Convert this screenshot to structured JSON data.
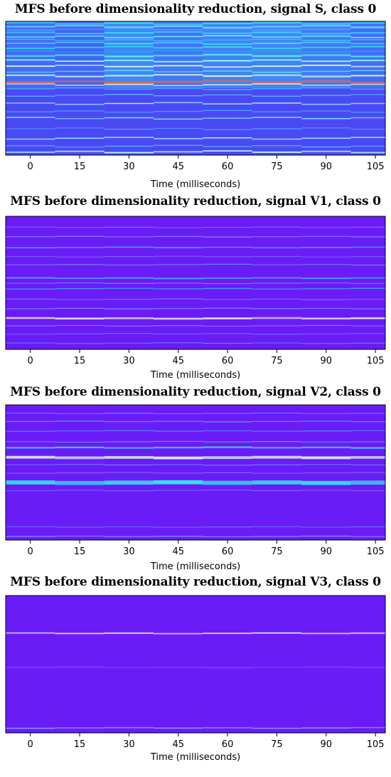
{
  "charts": [
    {
      "title": "MFS before dimensionality reduction, signal S, class 0",
      "xlabel": "Time (milliseconds)",
      "x_ticks": [
        "0",
        "15",
        "30",
        "45",
        "60",
        "75",
        "90",
        "105"
      ]
    },
    {
      "title": "MFS before dimensionality reduction, signal V1, class 0",
      "xlabel": "Time (milliseconds)",
      "x_ticks": [
        "0",
        "15",
        "30",
        "45",
        "60",
        "75",
        "90",
        "105"
      ]
    },
    {
      "title": "MFS before dimensionality reduction, signal V2, class 0",
      "xlabel": "Time (milliseconds)",
      "x_ticks": [
        "0",
        "15",
        "30",
        "45",
        "60",
        "75",
        "90",
        "105"
      ]
    },
    {
      "title": "MFS before dimensionality reduction, signal V3, class 0",
      "xlabel": "Time (milliseconds)",
      "x_ticks": [
        "0",
        "15",
        "30",
        "45",
        "60",
        "75",
        "90",
        "105"
      ]
    }
  ],
  "chart_data": [
    {
      "type": "heatmap",
      "title": "MFS before dimensionality reduction, signal S, class 0",
      "xlabel": "Time (milliseconds)",
      "ylabel": "",
      "x_tick_values": [
        0,
        15,
        30,
        45,
        60,
        75,
        90,
        105
      ],
      "xlim": [
        -7.5,
        108
      ],
      "time_segments_ms": [
        -7.5,
        7.5,
        22.5,
        37.5,
        52.5,
        67.5,
        82.5,
        97.5,
        108
      ],
      "colormap": [
        "#4a3dfc",
        "#3f7bff",
        "#2fc6f4",
        "#6ee6f5",
        "#f2e6d8",
        "#e8a08a",
        "#d9573f"
      ],
      "background": "#4a4af5",
      "bands": [
        {
          "row": 0.01,
          "h": 0.012,
          "c": "#38d8f2"
        },
        {
          "row": 0.035,
          "h": 0.01,
          "c": "#7dd6ff"
        },
        {
          "row": 0.055,
          "h": 0.008,
          "c": "#48a8ff"
        },
        {
          "row": 0.08,
          "h": 0.012,
          "c": "#3fc8ff"
        },
        {
          "row": 0.11,
          "h": 0.008,
          "c": "#7cf0ff"
        },
        {
          "row": 0.135,
          "h": 0.01,
          "c": "#39b7ff"
        },
        {
          "row": 0.16,
          "h": 0.008,
          "c": "#60e0ff"
        },
        {
          "row": 0.19,
          "h": 0.01,
          "c": "#2fe0e8"
        },
        {
          "row": 0.22,
          "h": 0.008,
          "c": "#3a9cff"
        },
        {
          "row": 0.25,
          "h": 0.012,
          "c": "#56e8f8"
        },
        {
          "row": 0.29,
          "h": 0.01,
          "c": "#a4fff0"
        },
        {
          "row": 0.33,
          "h": 0.01,
          "c": "#e8f0e0"
        },
        {
          "row": 0.37,
          "h": 0.008,
          "c": "#6ad8ff"
        },
        {
          "row": 0.4,
          "h": 0.012,
          "c": "#cfe8e0"
        },
        {
          "row": 0.445,
          "h": 0.014,
          "c": "#e06850"
        },
        {
          "row": 0.47,
          "h": 0.008,
          "c": "#f0e8e0"
        },
        {
          "row": 0.5,
          "h": 0.008,
          "c": "#4bb0ff"
        },
        {
          "row": 0.55,
          "h": 0.006,
          "c": "#5cc8ff"
        },
        {
          "row": 0.61,
          "h": 0.008,
          "c": "#a0e8ff"
        },
        {
          "row": 0.67,
          "h": 0.006,
          "c": "#4fa8ff"
        },
        {
          "row": 0.72,
          "h": 0.008,
          "c": "#7ee0ff"
        },
        {
          "row": 0.8,
          "h": 0.006,
          "c": "#5aa0ff"
        },
        {
          "row": 0.87,
          "h": 0.008,
          "c": "#a8f0ff"
        },
        {
          "row": 0.93,
          "h": 0.006,
          "c": "#62b8ff"
        },
        {
          "row": 0.97,
          "h": 0.01,
          "c": "#b8f8ff"
        }
      ]
    },
    {
      "type": "heatmap",
      "title": "MFS before dimensionality reduction, signal V1, class 0",
      "xlabel": "Time (milliseconds)",
      "ylabel": "",
      "x_tick_values": [
        0,
        15,
        30,
        45,
        60,
        75,
        90,
        105
      ],
      "xlim": [
        -7.5,
        108
      ],
      "background": "#6a1cf6",
      "bands": [
        {
          "row": 0.08,
          "h": 0.006,
          "c": "#7c78ff"
        },
        {
          "row": 0.15,
          "h": 0.005,
          "c": "#8a8cff"
        },
        {
          "row": 0.23,
          "h": 0.008,
          "c": "#3cb4f0"
        },
        {
          "row": 0.3,
          "h": 0.005,
          "c": "#7a6cff"
        },
        {
          "row": 0.36,
          "h": 0.006,
          "c": "#6a90ff"
        },
        {
          "row": 0.46,
          "h": 0.01,
          "c": "#4fb0f5"
        },
        {
          "row": 0.5,
          "h": 0.006,
          "c": "#7a80ff"
        },
        {
          "row": 0.54,
          "h": 0.008,
          "c": "#3aa0f0"
        },
        {
          "row": 0.62,
          "h": 0.006,
          "c": "#7a7cff"
        },
        {
          "row": 0.69,
          "h": 0.006,
          "c": "#8a90ff"
        },
        {
          "row": 0.76,
          "h": 0.014,
          "c": "#e8e6d8"
        },
        {
          "row": 0.82,
          "h": 0.005,
          "c": "#8a80ff"
        },
        {
          "row": 0.88,
          "h": 0.005,
          "c": "#6c74ff"
        },
        {
          "row": 0.95,
          "h": 0.006,
          "c": "#5a8cff"
        }
      ]
    },
    {
      "type": "heatmap",
      "title": "MFS before dimensionality reduction, signal V2, class 0",
      "xlabel": "Time (milliseconds)",
      "ylabel": "",
      "x_tick_values": [
        0,
        15,
        30,
        45,
        60,
        75,
        90,
        105
      ],
      "xlim": [
        -7.5,
        108
      ],
      "background": "#6a1cf6",
      "bands": [
        {
          "row": 0.06,
          "h": 0.006,
          "c": "#6e7cff"
        },
        {
          "row": 0.12,
          "h": 0.006,
          "c": "#3fb0f5"
        },
        {
          "row": 0.19,
          "h": 0.006,
          "c": "#3f9cf5"
        },
        {
          "row": 0.27,
          "h": 0.006,
          "c": "#7a8cff"
        },
        {
          "row": 0.31,
          "h": 0.012,
          "c": "#3fd0f0"
        },
        {
          "row": 0.38,
          "h": 0.02,
          "c": "#d8f4e6"
        },
        {
          "row": 0.44,
          "h": 0.006,
          "c": "#6f86ff"
        },
        {
          "row": 0.5,
          "h": 0.005,
          "c": "#7a70ff"
        },
        {
          "row": 0.56,
          "h": 0.03,
          "c": "#2ee8f0"
        },
        {
          "row": 0.63,
          "h": 0.006,
          "c": "#7c6cff"
        },
        {
          "row": 0.9,
          "h": 0.006,
          "c": "#6c74ff"
        },
        {
          "row": 0.97,
          "h": 0.006,
          "c": "#8c9cff"
        }
      ]
    },
    {
      "type": "heatmap",
      "title": "MFS before dimensionality reduction, signal V3, class 0",
      "xlabel": "Time (milliseconds)",
      "ylabel": "",
      "x_tick_values": [
        0,
        15,
        30,
        45,
        60,
        75,
        90,
        105
      ],
      "xlim": [
        -7.5,
        108
      ],
      "background": "#6a1cf6",
      "bands": [
        {
          "row": 0.27,
          "h": 0.01,
          "c": "#e6e2f0"
        },
        {
          "row": 0.52,
          "h": 0.004,
          "c": "#7c5cff"
        },
        {
          "row": 0.96,
          "h": 0.008,
          "c": "#8aa0ff"
        }
      ]
    }
  ]
}
